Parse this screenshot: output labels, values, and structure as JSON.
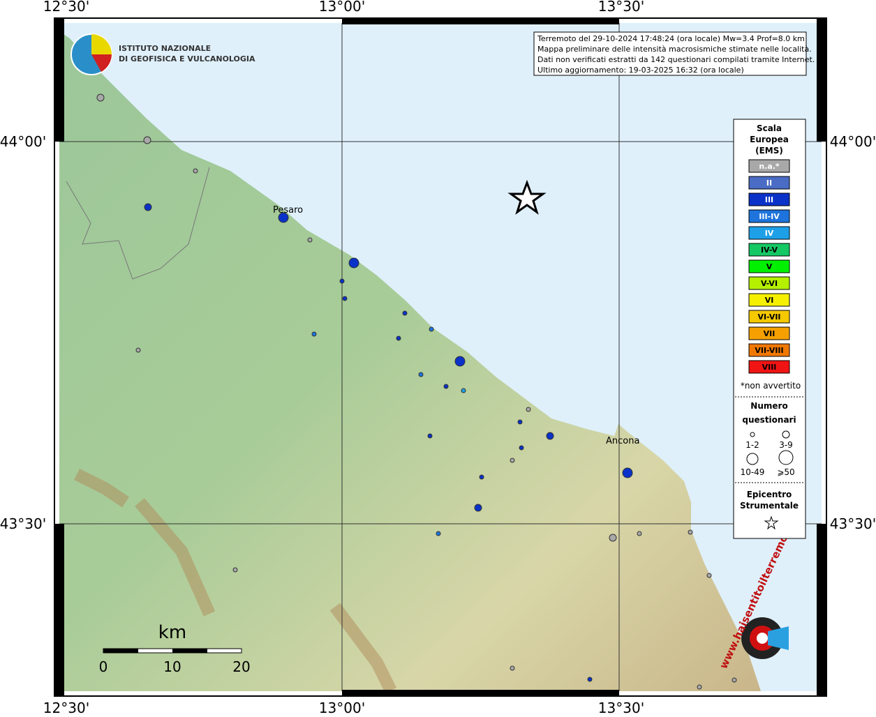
{
  "map": {
    "lon_labels": [
      "12°30'",
      "13°00'",
      "13°30'"
    ],
    "lat_labels": [
      "44°00'",
      "43°30'"
    ],
    "info": [
      "Terremoto del 29-10-2024 17:48:24 (ora locale) Mw=3.4 Prof=8.0 km",
      "Mappa preliminare delle intensità macrosismiche stimate nelle località.",
      "Dati non verificati estratti da 142 questionari compilati tramite Internet.",
      "Ultimo aggiornamento: 19-03-2025 16:32 (ora locale)"
    ],
    "logo": [
      "ISTITUTO NAZIONALE",
      "DI GEOFISICA E VULCANOLOGIA"
    ],
    "cities": [
      "Pesaro",
      "Ancona"
    ],
    "scale": {
      "unit": "km",
      "ticks": [
        "0",
        "10",
        "20"
      ]
    },
    "watermark": "www.haisentitoilterremoto.it"
  },
  "legend": {
    "title": [
      "Scala",
      "Europea",
      "(EMS)"
    ],
    "levels": [
      {
        "label": "n.a.*",
        "color": "#a8a8a8"
      },
      {
        "label": "II",
        "color": "#4a6cc4"
      },
      {
        "label": "III",
        "color": "#0a32c8"
      },
      {
        "label": "III-IV",
        "color": "#1e74dc"
      },
      {
        "label": "IV",
        "color": "#1ea0e8"
      },
      {
        "label": "IV-V",
        "color": "#14c864"
      },
      {
        "label": "V",
        "color": "#00f000"
      },
      {
        "label": "V-VI",
        "color": "#b4f000"
      },
      {
        "label": "VI",
        "color": "#f5f000"
      },
      {
        "label": "VI-VII",
        "color": "#f5c800"
      },
      {
        "label": "VII",
        "color": "#f5a000"
      },
      {
        "label": "VII-VIII",
        "color": "#f07800"
      },
      {
        "label": "VIII",
        "color": "#f01414"
      }
    ],
    "note": "*non avvertito",
    "count_title": [
      "Numero",
      "questionari"
    ],
    "count_labels": [
      "1-2",
      "3-9",
      "10-49",
      "⩾50"
    ],
    "epicenter": [
      "Epicentro",
      "Strumentale"
    ]
  }
}
